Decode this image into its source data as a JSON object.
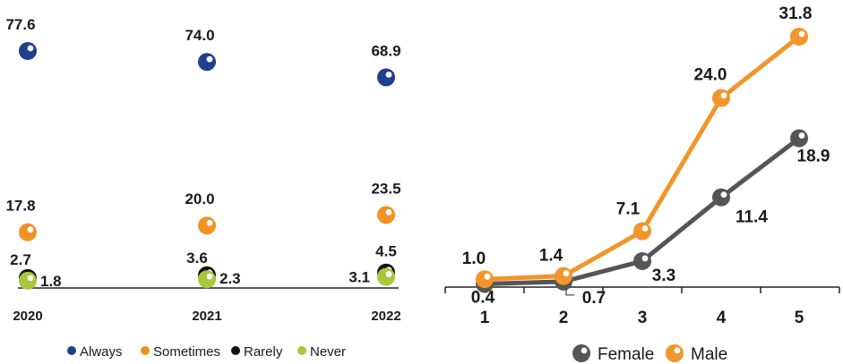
{
  "colors": {
    "always": "#1f3f8f",
    "sometimes": "#f29222",
    "rarely": "#111111",
    "never": "#a6c83a",
    "female": "#555555",
    "male": "#f2952a",
    "axis": "#222222"
  },
  "chart_data": [
    {
      "type": "scatter",
      "categories": [
        "2020",
        "2021",
        "2022"
      ],
      "ylim": [
        0,
        80
      ],
      "series": [
        {
          "name": "Always",
          "values": [
            77.6,
            74.0,
            68.9
          ],
          "labels": [
            "77.6",
            "74.0",
            "68.9"
          ]
        },
        {
          "name": "Sometimes",
          "values": [
            17.8,
            20.0,
            23.5
          ],
          "labels": [
            "17.8",
            "20.0",
            "23.5"
          ]
        },
        {
          "name": "Rarely",
          "values": [
            2.7,
            3.6,
            4.5
          ],
          "labels": [
            "2.7",
            "3.6",
            "4.5"
          ]
        },
        {
          "name": "Never",
          "values": [
            1.8,
            2.3,
            3.1
          ],
          "labels": [
            "1.8",
            "2.3",
            "3.1"
          ]
        }
      ],
      "legend": [
        "Always",
        "Sometimes",
        "Rarely",
        "Never"
      ],
      "legend_position": "bottom"
    },
    {
      "type": "line",
      "categories": [
        "1",
        "2",
        "3",
        "4",
        "5"
      ],
      "ylim": [
        0,
        35
      ],
      "series": [
        {
          "name": "Female",
          "values": [
            0.4,
            0.7,
            3.3,
            11.4,
            18.9
          ],
          "labels": [
            "0.4",
            "0.7",
            "3.3",
            "11.4",
            "18.9"
          ]
        },
        {
          "name": "Male",
          "values": [
            1.0,
            1.4,
            7.1,
            24.0,
            31.8
          ],
          "labels": [
            "1.0",
            "1.4",
            "7.1",
            "24.0",
            "31.8"
          ]
        }
      ],
      "legend": [
        "Female",
        "Male"
      ],
      "legend_position": "bottom"
    }
  ]
}
